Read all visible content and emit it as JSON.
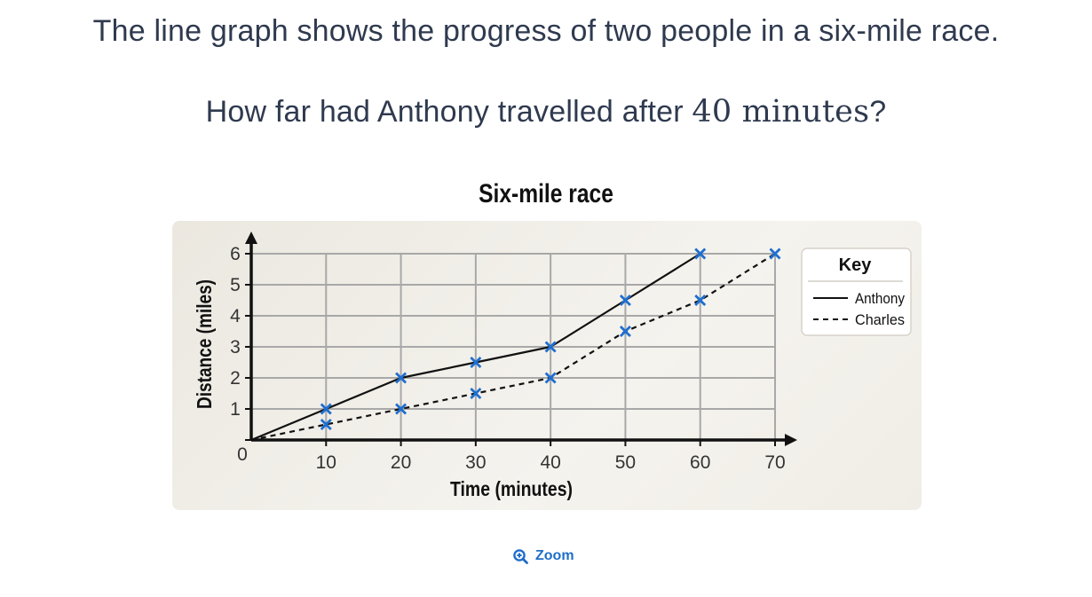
{
  "question": {
    "line1": "The line graph shows the progress of two people in a six-mile race.",
    "line2_prefix": "How far had Anthony travelled after ",
    "line2_math": "40 minutes",
    "line2_suffix": "?"
  },
  "zoom": {
    "label": "Zoom",
    "icon": "zoom-in-icon"
  },
  "colors": {
    "marker": "#1e6fd0",
    "grid": "#a8a8a8",
    "axis": "#111111"
  },
  "chart_data": {
    "type": "line",
    "title": "Six-mile race",
    "xlabel": "Time (minutes)",
    "ylabel": "Distance (miles)",
    "xlim": [
      0,
      70
    ],
    "ylim": [
      0,
      6
    ],
    "x_ticks": [
      "0",
      "10",
      "20",
      "30",
      "40",
      "50",
      "60",
      "70"
    ],
    "y_ticks": [
      "1",
      "2",
      "3",
      "4",
      "5",
      "6"
    ],
    "grid": true,
    "legend": {
      "title": "Key",
      "placement": "right"
    },
    "series": [
      {
        "name": "Anthony",
        "style": "solid",
        "x": [
          0,
          10,
          20,
          30,
          40,
          50,
          60
        ],
        "y": [
          0,
          1,
          2,
          2.5,
          3,
          4.5,
          6
        ]
      },
      {
        "name": "Charles",
        "style": "dashed",
        "x": [
          0,
          10,
          20,
          30,
          40,
          50,
          60,
          70
        ],
        "y": [
          0,
          0.5,
          1,
          1.5,
          2,
          3.5,
          4.5,
          6
        ]
      }
    ]
  }
}
